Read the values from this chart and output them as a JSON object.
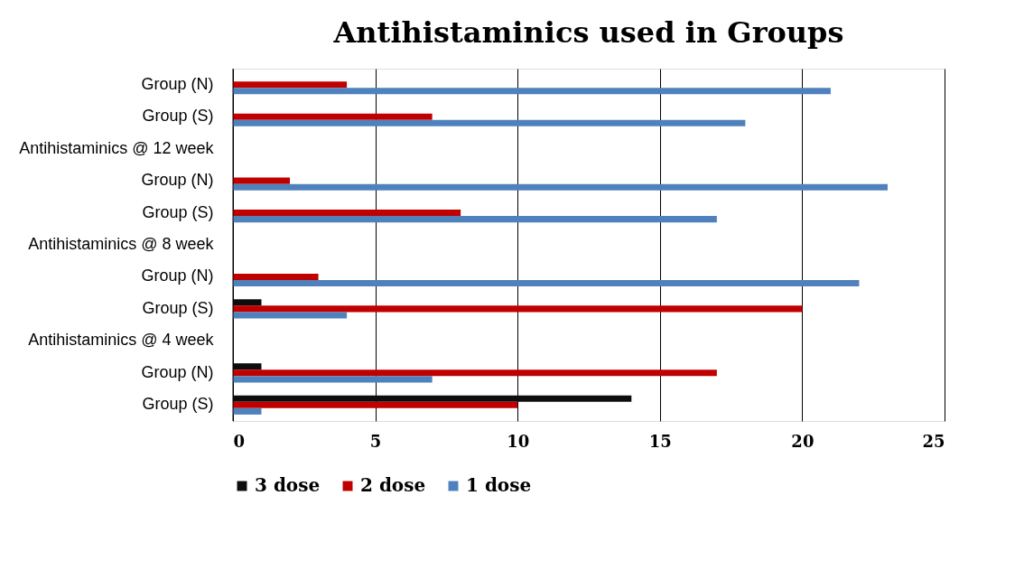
{
  "chart_data": {
    "type": "bar",
    "orientation": "horizontal",
    "title": "Antihistaminics used in Groups",
    "categories": [
      "Group (N)",
      "Group (S)",
      "Antihistaminics @ 12 week",
      "Group (N)",
      "Group (S)",
      "Antihistaminics @ 8 week",
      "Group (N)",
      "Group (S)",
      "Antihistaminics @ 4 week",
      "Group (N)",
      "Group (S)"
    ],
    "series": [
      {
        "name": "3 dose",
        "color": "#0d0d0d",
        "values": [
          null,
          null,
          null,
          null,
          null,
          null,
          null,
          1,
          null,
          1,
          14
        ]
      },
      {
        "name": "2 dose",
        "color": "#c00000",
        "values": [
          4,
          7,
          null,
          2,
          8,
          null,
          3,
          20,
          null,
          17,
          10
        ]
      },
      {
        "name": "1 dose",
        "color": "#4f81bd",
        "values": [
          21,
          18,
          null,
          23,
          17,
          null,
          22,
          4,
          null,
          7,
          1
        ]
      }
    ],
    "xlim": [
      0,
      25
    ],
    "xticks": [
      0,
      5,
      10,
      15,
      20,
      25
    ],
    "grid": "x",
    "legend": "bottom"
  }
}
